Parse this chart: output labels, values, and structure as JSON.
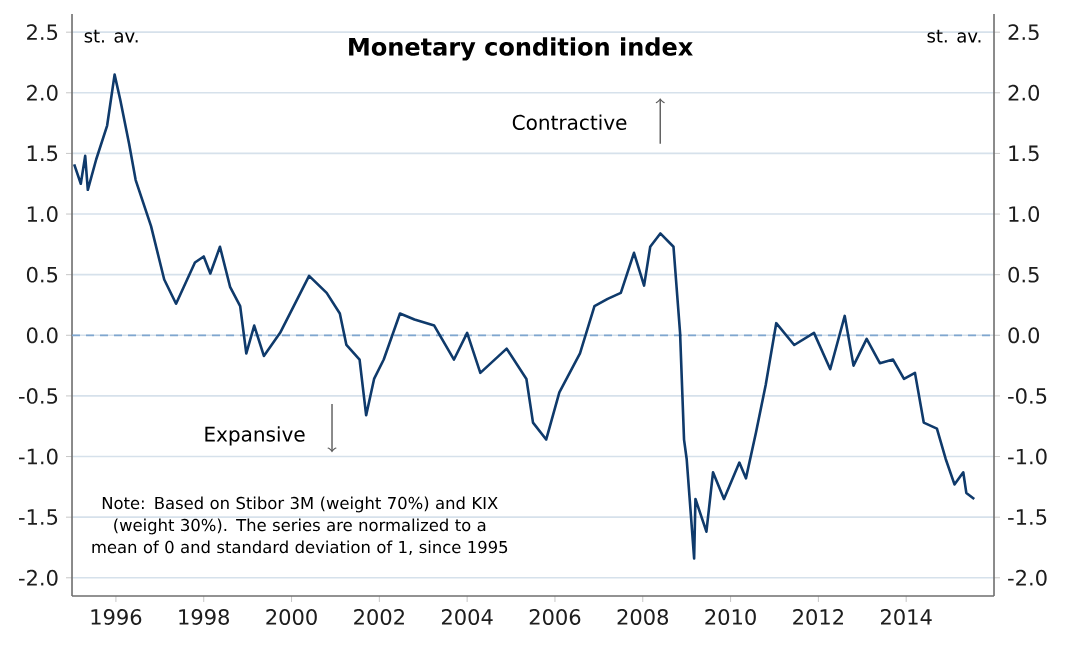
{
  "chart_data": {
    "type": "line",
    "title": "Monetary condition index",
    "ylabel": "st. av.",
    "y2label": "st. av.",
    "annotations": [
      "Contractive",
      "Expansive",
      "Note: Based on Stibor 3M (weight 70%) and KIX (weight 30%). The series are normalized to a mean of 0 and standard deviation of 1, since 1995"
    ],
    "series": [
      {
        "color": "#0f3a6b",
        "x": [
          1995.05,
          1995.2,
          1995.3,
          1995.36,
          1995.55,
          1995.8,
          1995.97,
          1996.1,
          1996.3,
          1996.45,
          1996.8,
          1997.1,
          1997.37,
          1997.8,
          1998.0,
          1998.15,
          1998.37,
          1998.6,
          1998.83,
          1998.97,
          1999.15,
          1999.37,
          1999.74,
          2000.05,
          2000.4,
          2000.8,
          2001.1,
          2001.25,
          2001.55,
          2001.7,
          2001.88,
          2002.1,
          2002.47,
          2002.8,
          2003.25,
          2003.7,
          2004.0,
          2004.3,
          2004.9,
          2005.35,
          2005.5,
          2005.8,
          2006.1,
          2006.57,
          2006.9,
          2007.2,
          2007.5,
          2007.8,
          2008.03,
          2008.17,
          2008.4,
          2008.7,
          2008.85,
          2008.94,
          2009.0,
          2009.17,
          2009.2,
          2009.45,
          2009.6,
          2009.85,
          2010.2,
          2010.35,
          2010.58,
          2010.8,
          2011.04,
          2011.45,
          2011.9,
          2012.27,
          2012.6,
          2012.8,
          2013.1,
          2013.4,
          2013.7,
          2013.95,
          2014.2,
          2014.4,
          2014.7,
          2014.9,
          2015.1,
          2015.3,
          2015.37,
          2015.55
        ],
        "values": [
          1.41,
          1.25,
          1.48,
          1.2,
          1.45,
          1.73,
          2.15,
          1.94,
          1.58,
          1.28,
          0.9,
          0.46,
          0.26,
          0.6,
          0.65,
          0.51,
          0.73,
          0.4,
          0.24,
          -0.15,
          0.08,
          -0.17,
          0.02,
          0.24,
          0.49,
          0.35,
          0.18,
          -0.08,
          -0.2,
          -0.66,
          -0.36,
          -0.2,
          0.18,
          0.13,
          0.08,
          -0.2,
          0.02,
          -0.31,
          -0.11,
          -0.36,
          -0.72,
          -0.86,
          -0.47,
          -0.15,
          0.24,
          0.3,
          0.35,
          0.68,
          0.41,
          0.73,
          0.84,
          0.73,
          0.02,
          -0.86,
          -1.02,
          -1.84,
          -1.35,
          -1.62,
          -1.13,
          -1.35,
          -1.05,
          -1.18,
          -0.8,
          -0.41,
          0.1,
          -0.08,
          0.02,
          -0.28,
          0.16,
          -0.25,
          -0.03,
          -0.23,
          -0.2,
          -0.36,
          -0.31,
          -0.72,
          -0.77,
          -1.02,
          -1.23,
          -1.13,
          -1.3,
          -1.35
        ]
      }
    ],
    "xlim": [
      1995,
      2016
    ],
    "xticks": [
      1996,
      1998,
      2000,
      2002,
      2004,
      2006,
      2008,
      2010,
      2012,
      2014
    ],
    "ylim": [
      -2.15,
      2.65
    ],
    "yticks": [
      {
        "value": -2,
        "label": "-2.0"
      },
      -1.5,
      {
        "value": -1,
        "label": "-1.0"
      },
      -0.5,
      {
        "value": 0,
        "label": "0.0"
      },
      0.5,
      {
        "value": 1,
        "label": "1.0"
      },
      1.5,
      {
        "value": 2,
        "label": "2.0"
      },
      2.5
    ],
    "y2lim": [
      -2.15,
      2.65
    ],
    "y2ticks": [
      {
        "value": -2,
        "label": "-2.0"
      },
      -1.5,
      {
        "value": -1,
        "label": "-1.0"
      },
      -0.5,
      {
        "value": 0,
        "label": "0.0"
      },
      0.5,
      {
        "value": 1,
        "label": "1.0"
      },
      1.5,
      {
        "value": 2,
        "label": "2.0"
      },
      2.5
    ],
    "grid": "y",
    "ref_lines": [
      {
        "axis": "y",
        "value": 0,
        "color": "#7fa6cf",
        "line_style": "dashed"
      }
    ]
  }
}
